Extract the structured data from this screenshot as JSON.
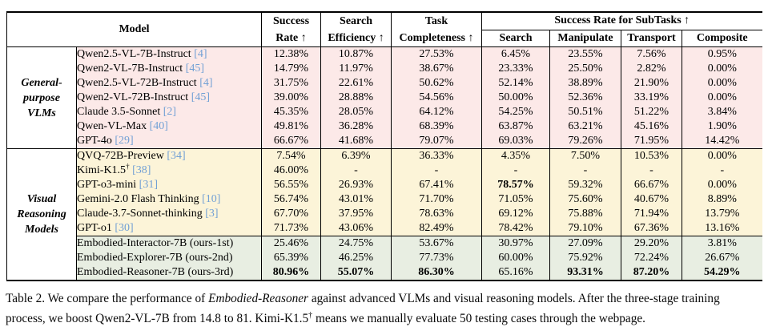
{
  "colors": {
    "pink": "#fce9e8",
    "cream": "#fcf4d8",
    "green": "#e8eee2",
    "cite_blue": "#72a0d5"
  },
  "table": {
    "header": {
      "model": "Model",
      "success_rate": {
        "l1": "Success",
        "l2": "Rate ↑"
      },
      "search_efficiency": {
        "l1": "Search",
        "l2": "Efficiency ↑"
      },
      "task_completeness": {
        "l1": "Task",
        "l2": "Completeness ↑"
      },
      "subtasks_title": "Success Rate for SubTasks ↑",
      "subtask_cols": [
        "Search",
        "Manipulate",
        "Transport",
        "Composite"
      ]
    },
    "groups": [
      {
        "label": "General-purpose VLMs",
        "label_lines": [
          "General-",
          "purpose",
          "VLMs"
        ],
        "rows": [
          {
            "model": "Qwen2.5-VL-7B-Instruct",
            "cite": "[4]",
            "bg": "pink",
            "values": [
              "12.38%",
              "10.87%",
              "27.53%",
              "6.45%",
              "23.55%",
              "7.56%",
              "0.95%"
            ]
          },
          {
            "model": "Qwen2-VL-7B-Instruct",
            "cite": "[45]",
            "bg": "pink",
            "values": [
              "14.79%",
              "11.97%",
              "38.67%",
              "23.33%",
              "25.50%",
              "2.82%",
              "0.00%"
            ]
          },
          {
            "model": "Qwen2.5-VL-72B-Instruct",
            "cite": "[4]",
            "bg": "pink",
            "values": [
              "31.75%",
              "22.61%",
              "50.62%",
              "52.14%",
              "38.89%",
              "21.90%",
              "0.00%"
            ]
          },
          {
            "model": "Qwen2-VL-72B-Instruct",
            "cite": "[45]",
            "bg": "pink",
            "values": [
              "39.00%",
              "28.88%",
              "54.56%",
              "50.00%",
              "52.36%",
              "33.19%",
              "0.00%"
            ]
          },
          {
            "model": "Claude 3.5-Sonnet",
            "cite": "[2]",
            "bg": "pink",
            "values": [
              "45.35%",
              "28.05%",
              "64.12%",
              "54.25%",
              "50.51%",
              "51.22%",
              "3.84%"
            ]
          },
          {
            "model": "Qwen-VL-Max",
            "cite": "[40]",
            "bg": "pink",
            "values": [
              "49.81%",
              "36.28%",
              "68.39%",
              "63.87%",
              "63.21%",
              "45.16%",
              "1.90%"
            ]
          },
          {
            "model": "GPT-4o",
            "cite": "[29]",
            "bg": "pink",
            "values": [
              "66.67%",
              "41.68%",
              "79.07%",
              "69.03%",
              "79.26%",
              "71.95%",
              "14.42%"
            ]
          }
        ]
      },
      {
        "label": "Visual Reasoning Models",
        "label_lines": [
          "Visual",
          "Reasoning",
          "Models"
        ],
        "rows": [
          {
            "model": "QVQ-72B-Preview",
            "cite": "[34]",
            "bg": "cream",
            "values": [
              "7.54%",
              "6.39%",
              "36.33%",
              "4.35%",
              "7.50%",
              "10.53%",
              "0.00%"
            ]
          },
          {
            "model": "Kimi-K1.5",
            "sup": "†",
            "cite": "[38]",
            "bg": "cream",
            "values": [
              "46.00%",
              "-",
              "-",
              "-",
              "-",
              "-",
              "-"
            ]
          },
          {
            "model": "GPT-o3-mini",
            "cite": "[31]",
            "bg": "cream",
            "bold": [
              3
            ],
            "values": [
              "56.55%",
              "26.93%",
              "67.41%",
              "78.57%",
              "59.32%",
              "66.67%",
              "0.00%"
            ]
          },
          {
            "model": "Gemini-2.0 Flash Thinking",
            "cite": "[10]",
            "bg": "cream",
            "values": [
              "56.74%",
              "43.01%",
              "71.70%",
              "71.05%",
              "75.60%",
              "40.67%",
              "8.89%"
            ]
          },
          {
            "model": "Claude-3.7-Sonnet-thinking",
            "cite": "[3]",
            "bg": "cream",
            "values": [
              "67.70%",
              "37.95%",
              "78.63%",
              "69.12%",
              "75.88%",
              "71.94%",
              "13.79%"
            ]
          },
          {
            "model": "GPT-o1",
            "cite": "[30]",
            "bg": "cream",
            "values": [
              "71.73%",
              "43.06%",
              "82.49%",
              "78.42%",
              "79.10%",
              "67.36%",
              "13.16%"
            ]
          },
          {
            "model": "Embodied-Interactor-7B (ours-1st)",
            "bg": "green",
            "divider_above": true,
            "values": [
              "25.46%",
              "24.75%",
              "53.67%",
              "30.97%",
              "27.09%",
              "29.20%",
              "3.81%"
            ]
          },
          {
            "model": "Embodied-Explorer-7B (ours-2nd)",
            "bg": "green",
            "values": [
              "65.39%",
              "46.25%",
              "77.73%",
              "60.00%",
              "75.92%",
              "72.24%",
              "26.67%"
            ]
          },
          {
            "model": "Embodied-Reasoner-7B (ours-3rd)",
            "bg": "green",
            "bold": [
              0,
              1,
              2,
              4,
              5,
              6
            ],
            "values": [
              "80.96%",
              "55.07%",
              "86.30%",
              "65.16%",
              "93.31%",
              "87.20%",
              "54.29%"
            ]
          }
        ]
      }
    ]
  },
  "caption": {
    "prefix": "Table 2. We compare the performance of ",
    "italic": "Embodied-Reasoner",
    "middle": " against advanced VLMs and visual reasoning models. After the three-stage training process, we boost Qwen2-VL-7B from 14.8 to 81. Kimi-K1.5",
    "sup": "†",
    "suffix": " means we manually evaluate 50 testing cases through the webpage."
  }
}
